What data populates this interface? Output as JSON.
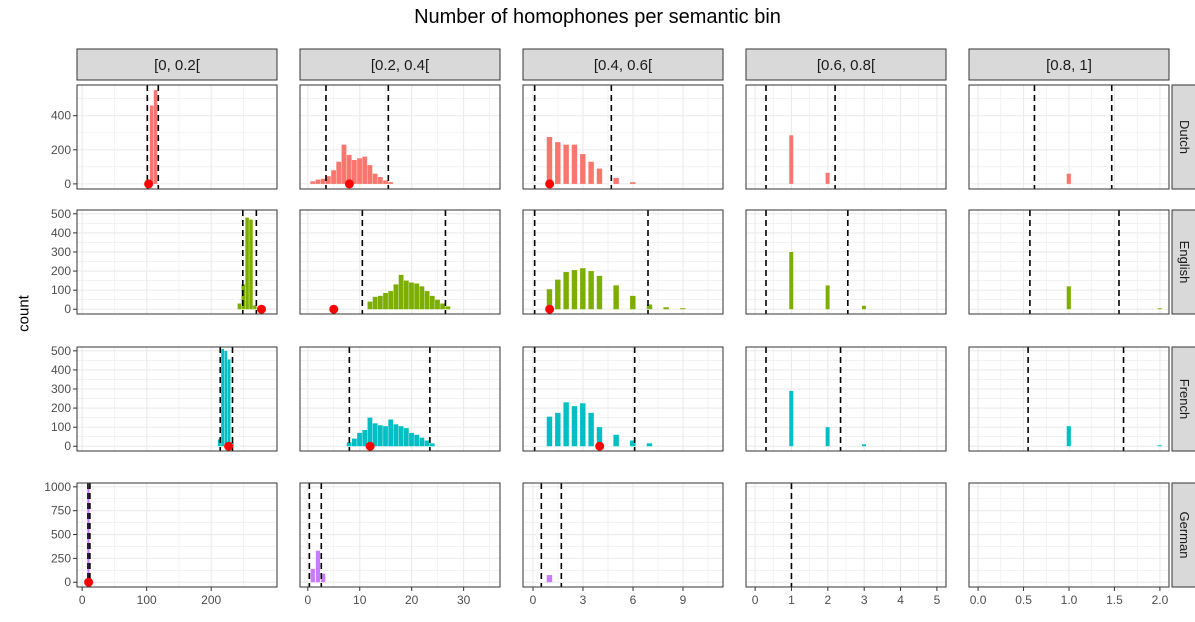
{
  "title": "Number of homophones per semantic bin",
  "ylabel": "count",
  "colors": {
    "Dutch": "#f8766d",
    "English": "#7cae00",
    "French": "#00bfc4",
    "German": "#c77cff",
    "point": "#ff0000",
    "grid": "#ebebeb",
    "strip": "#d9d9d9"
  },
  "chart_data": {
    "type": "bar",
    "facet_columns": [
      "[0, 0.2[",
      "[0.2, 0.4[",
      "[0.4, 0.6[",
      "[0.6, 0.8[",
      "[0.8, 1]"
    ],
    "facet_rows": [
      "Dutch",
      "English",
      "French",
      "German"
    ],
    "x_axes": [
      {
        "range": [
          -8,
          302
        ],
        "ticks": [
          0,
          100,
          200
        ],
        "tick_labels": [
          "0",
          "100",
          "200"
        ]
      },
      {
        "range": [
          -1.5,
          37
        ],
        "ticks": [
          0,
          10,
          20,
          30
        ],
        "tick_labels": [
          "0",
          "10",
          "20",
          "30"
        ]
      },
      {
        "range": [
          -0.6,
          11.4
        ],
        "ticks": [
          0,
          3,
          6,
          9
        ],
        "tick_labels": [
          "0",
          "3",
          "6",
          "9"
        ]
      },
      {
        "range": [
          -0.25,
          5.25
        ],
        "ticks": [
          0,
          1,
          2,
          3,
          4,
          5
        ],
        "tick_labels": [
          "0",
          "1",
          "2",
          "3",
          "4",
          "5"
        ]
      },
      {
        "range": [
          -0.1,
          2.1
        ],
        "ticks": [
          0,
          0.5,
          1,
          1.5,
          2
        ],
        "tick_labels": [
          "0.0",
          "0.5",
          "1.0",
          "1.5",
          "2.0"
        ]
      }
    ],
    "y_axes": [
      {
        "row": "Dutch",
        "range": [
          -30,
          580
        ],
        "ticks": [
          0,
          200,
          400
        ],
        "tick_labels": [
          "0",
          "200",
          "400"
        ]
      },
      {
        "row": "English",
        "range": [
          -25,
          520
        ],
        "ticks": [
          0,
          100,
          200,
          300,
          400,
          500
        ],
        "tick_labels": [
          "0",
          "100",
          "200",
          "300",
          "400",
          "500"
        ]
      },
      {
        "row": "French",
        "range": [
          -25,
          520
        ],
        "ticks": [
          0,
          100,
          200,
          300,
          400,
          500
        ],
        "tick_labels": [
          "0",
          "100",
          "200",
          "300",
          "400",
          "500"
        ]
      },
      {
        "row": "German",
        "range": [
          -50,
          1040
        ],
        "ticks": [
          0,
          250,
          500,
          750,
          1000
        ],
        "tick_labels": [
          "0",
          "250",
          "500",
          "750",
          "1000"
        ]
      }
    ],
    "panels": [
      {
        "row": 0,
        "col": 0,
        "bar_width": 6,
        "bars": [
          [
            103,
            5
          ],
          [
            108,
            460
          ],
          [
            114,
            550
          ]
        ],
        "vlines": [
          101,
          118
        ],
        "point": 103
      },
      {
        "row": 0,
        "col": 1,
        "bar_width": 1,
        "bars": [
          [
            1,
            15
          ],
          [
            2,
            25
          ],
          [
            3,
            30
          ],
          [
            4,
            45
          ],
          [
            5,
            80
          ],
          [
            6,
            130
          ],
          [
            7,
            230
          ],
          [
            8,
            170
          ],
          [
            9,
            140
          ],
          [
            10,
            150
          ],
          [
            11,
            160
          ],
          [
            12,
            110
          ],
          [
            13,
            60
          ],
          [
            14,
            40
          ],
          [
            15,
            20
          ],
          [
            16,
            10
          ]
        ],
        "vlines": [
          3.5,
          15.5
        ],
        "point": 8
      },
      {
        "row": 0,
        "col": 2,
        "bar_width": 0.35,
        "bars": [
          [
            1,
            275
          ],
          [
            1.5,
            245
          ],
          [
            2,
            230
          ],
          [
            2.5,
            230
          ],
          [
            3,
            175
          ],
          [
            3.5,
            130
          ],
          [
            4,
            90
          ],
          [
            5,
            35
          ],
          [
            6,
            10
          ]
        ],
        "vlines": [
          0.1,
          4.7
        ],
        "point": 1
      },
      {
        "row": 0,
        "col": 3,
        "bar_width": 0.12,
        "bars": [
          [
            1,
            285
          ],
          [
            2,
            65
          ]
        ],
        "vlines": [
          0.3,
          2.2
        ]
      },
      {
        "row": 0,
        "col": 4,
        "bar_width": 0.05,
        "bars": [
          [
            1,
            60
          ]
        ],
        "vlines": [
          0.62,
          1.47
        ]
      },
      {
        "row": 1,
        "col": 0,
        "bar_width": 6,
        "bars": [
          [
            244,
            30
          ],
          [
            250,
            130
          ],
          [
            256,
            480
          ],
          [
            262,
            470
          ],
          [
            268,
            20
          ]
        ],
        "vlines": [
          249,
          270
        ],
        "point": 278
      },
      {
        "row": 1,
        "col": 1,
        "bar_width": 1,
        "bars": [
          [
            12,
            40
          ],
          [
            13,
            65
          ],
          [
            14,
            70
          ],
          [
            15,
            85
          ],
          [
            16,
            95
          ],
          [
            17,
            130
          ],
          [
            18,
            180
          ],
          [
            19,
            150
          ],
          [
            20,
            140
          ],
          [
            21,
            135
          ],
          [
            22,
            120
          ],
          [
            23,
            95
          ],
          [
            24,
            70
          ],
          [
            25,
            50
          ],
          [
            26,
            30
          ],
          [
            27,
            15
          ]
        ],
        "vlines": [
          10.5,
          26.5
        ],
        "point": 5
      },
      {
        "row": 1,
        "col": 2,
        "bar_width": 0.35,
        "bars": [
          [
            1,
            105
          ],
          [
            1.5,
            155
          ],
          [
            2,
            195
          ],
          [
            2.5,
            205
          ],
          [
            3,
            215
          ],
          [
            3.5,
            200
          ],
          [
            4,
            175
          ],
          [
            5,
            125
          ],
          [
            6,
            70
          ],
          [
            7,
            25
          ],
          [
            8,
            10
          ],
          [
            9,
            5
          ]
        ],
        "vlines": [
          0.1,
          6.9
        ],
        "point": 1
      },
      {
        "row": 1,
        "col": 3,
        "bar_width": 0.12,
        "bars": [
          [
            1,
            300
          ],
          [
            2,
            125
          ],
          [
            3,
            18
          ]
        ],
        "vlines": [
          0.3,
          2.55
        ]
      },
      {
        "row": 1,
        "col": 4,
        "bar_width": 0.05,
        "bars": [
          [
            1,
            120
          ],
          [
            2,
            5
          ]
        ],
        "vlines": [
          0.57,
          1.55
        ]
      },
      {
        "row": 2,
        "col": 0,
        "bar_width": 5,
        "bars": [
          [
            213,
            35
          ],
          [
            218,
            510
          ],
          [
            223,
            500
          ],
          [
            228,
            455
          ],
          [
            233,
            20
          ]
        ],
        "vlines": [
          214,
          233
        ],
        "point": 227
      },
      {
        "row": 2,
        "col": 1,
        "bar_width": 1,
        "bars": [
          [
            8,
            20
          ],
          [
            9,
            40
          ],
          [
            10,
            70
          ],
          [
            11,
            85
          ],
          [
            12,
            150
          ],
          [
            13,
            120
          ],
          [
            14,
            110
          ],
          [
            15,
            105
          ],
          [
            16,
            140
          ],
          [
            17,
            115
          ],
          [
            18,
            105
          ],
          [
            19,
            95
          ],
          [
            20,
            70
          ],
          [
            21,
            60
          ],
          [
            22,
            45
          ],
          [
            23,
            30
          ],
          [
            24,
            15
          ]
        ],
        "vlines": [
          8,
          23.5
        ],
        "point": 12
      },
      {
        "row": 2,
        "col": 2,
        "bar_width": 0.35,
        "bars": [
          [
            1,
            155
          ],
          [
            1.5,
            175
          ],
          [
            2,
            230
          ],
          [
            2.5,
            210
          ],
          [
            3,
            225
          ],
          [
            3.5,
            175
          ],
          [
            4,
            100
          ],
          [
            5,
            60
          ],
          [
            6,
            30
          ],
          [
            7,
            15
          ]
        ],
        "vlines": [
          0.1,
          6.1
        ],
        "point": 4
      },
      {
        "row": 2,
        "col": 3,
        "bar_width": 0.12,
        "bars": [
          [
            1,
            290
          ],
          [
            2,
            100
          ],
          [
            3,
            10
          ]
        ],
        "vlines": [
          0.3,
          2.35
        ]
      },
      {
        "row": 2,
        "col": 4,
        "bar_width": 0.05,
        "bars": [
          [
            1,
            105
          ],
          [
            2,
            5
          ]
        ],
        "vlines": [
          0.55,
          1.6
        ]
      },
      {
        "row": 3,
        "col": 0,
        "bar_width": 4,
        "bars": [
          [
            10,
            990
          ]
        ],
        "vlines": [
          9,
          12
        ],
        "point": 10
      },
      {
        "row": 3,
        "col": 1,
        "bar_width": 0.9,
        "bars": [
          [
            1,
            140
          ],
          [
            2,
            330
          ],
          [
            3,
            90
          ]
        ],
        "vlines": [
          0.3,
          2.6
        ]
      },
      {
        "row": 3,
        "col": 2,
        "bar_width": 0.35,
        "bars": [
          [
            1,
            75
          ]
        ],
        "vlines": [
          0.5,
          1.7
        ]
      },
      {
        "row": 3,
        "col": 3,
        "bar_width": 0.12,
        "bars": [],
        "vlines": [
          1.0
        ]
      },
      {
        "row": 3,
        "col": 4,
        "bar_width": 0.05,
        "bars": [],
        "vlines": []
      }
    ]
  }
}
